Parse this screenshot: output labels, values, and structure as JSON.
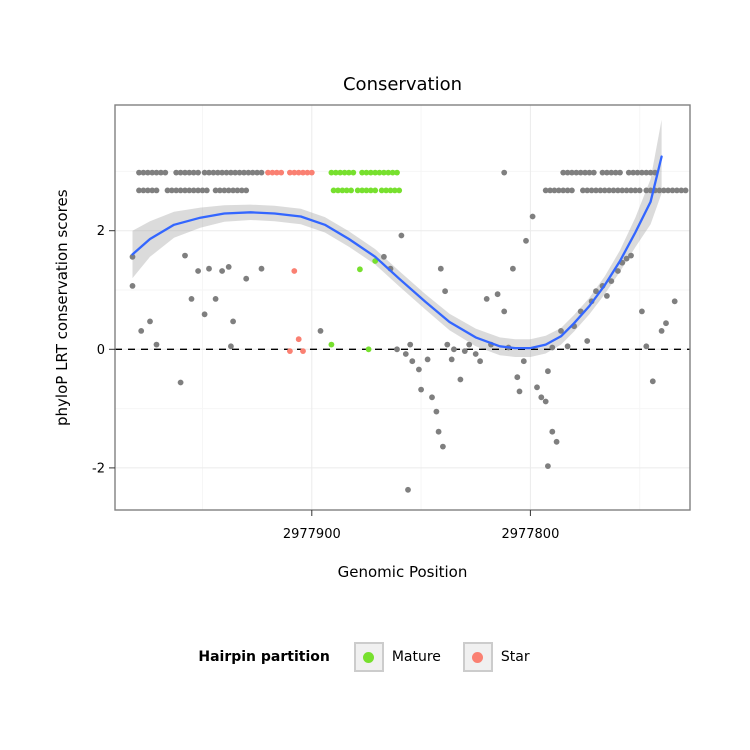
{
  "legend": {
    "title": "Hairpin partition",
    "items": [
      {
        "id": "mature",
        "label": "Mature",
        "color": "#77E02E"
      },
      {
        "id": "star",
        "label": "Star",
        "color": "#FA8072"
      }
    ]
  },
  "chart_data": {
    "type": "scatter",
    "title": "Conservation",
    "xlabel": "Genomic Position",
    "ylabel": "phyloP LRT conservation scores",
    "x_domain": [
      2977990,
      2977727
    ],
    "x_reversed": true,
    "x_ticks": [
      2977900,
      2977800
    ],
    "x_minor_ticks": [
      2977950,
      2977850,
      2977750
    ],
    "y_domain": [
      -2.71,
      4.12
    ],
    "y_ticks": [
      -2,
      0,
      2
    ],
    "y_minor_ticks": [
      -1,
      1,
      3
    ],
    "hline_y": 0,
    "run_step": 2,
    "colors": {
      "point": "#7F7F7F",
      "mature": "#77E02E",
      "star": "#FA8072",
      "smooth": "#3366FF",
      "ci": "#999999",
      "border": "#808080",
      "grid_major": "#EBEBEB",
      "grid_minor": "#F6F6F6",
      "tick": "#333333",
      "legend_key_fill": "#F0F0F0",
      "legend_key_border": "#CCCCCC"
    },
    "point_runs": [
      [
        2977979,
        2977966,
        2.98,
        "g"
      ],
      [
        2977962,
        2977951,
        2.98,
        "g"
      ],
      [
        2977949,
        2977923,
        2.98,
        "g"
      ],
      [
        2977920,
        2977913,
        2.98,
        "s"
      ],
      [
        2977910,
        2977900,
        2.98,
        "s"
      ],
      [
        2977891,
        2977880,
        2.98,
        "m"
      ],
      [
        2977877,
        2977861,
        2.98,
        "m"
      ],
      [
        2977812,
        2977812,
        2.98,
        "g"
      ],
      [
        2977785,
        2977770,
        2.98,
        "g"
      ],
      [
        2977767,
        2977758,
        2.98,
        "g"
      ],
      [
        2977755,
        2977742,
        2.98,
        "g"
      ],
      [
        2977979,
        2977970,
        2.68,
        "g"
      ],
      [
        2977966,
        2977948,
        2.68,
        "g"
      ],
      [
        2977944,
        2977930,
        2.68,
        "g"
      ],
      [
        2977890,
        2977882,
        2.68,
        "m"
      ],
      [
        2977879,
        2977871,
        2.68,
        "m"
      ],
      [
        2977868,
        2977860,
        2.68,
        "m"
      ],
      [
        2977793,
        2977780,
        2.68,
        "g"
      ],
      [
        2977776,
        2977750,
        2.68,
        "g"
      ],
      [
        2977747,
        2977729,
        2.68,
        "g"
      ]
    ],
    "points": [
      [
        2977982,
        1.56
      ],
      [
        2977982,
        1.07
      ],
      [
        2977978,
        0.31
      ],
      [
        2977974,
        0.47
      ],
      [
        2977971,
        0.08
      ],
      [
        2977960,
        -0.56
      ],
      [
        2977958,
        1.58
      ],
      [
        2977955,
        0.85
      ],
      [
        2977952,
        1.32
      ],
      [
        2977949,
        0.59
      ],
      [
        2977947,
        1.36
      ],
      [
        2977944,
        0.85
      ],
      [
        2977941,
        1.32
      ],
      [
        2977938,
        1.39
      ],
      [
        2977936,
        0.47
      ],
      [
        2977937,
        0.05
      ],
      [
        2977930,
        1.19
      ],
      [
        2977923,
        1.36
      ],
      [
        2977896,
        0.31
      ],
      [
        2977867,
        1.56
      ],
      [
        2977864,
        1.36
      ],
      [
        2977859,
        1.92
      ],
      [
        2977861,
        0.0
      ],
      [
        2977857,
        -0.08
      ],
      [
        2977855,
        0.08
      ],
      [
        2977854,
        -0.2
      ],
      [
        2977851,
        -0.34
      ],
      [
        2977850,
        -0.68
      ],
      [
        2977847,
        -0.17
      ],
      [
        2977845,
        -0.81
      ],
      [
        2977843,
        -1.05
      ],
      [
        2977841,
        1.36
      ],
      [
        2977839,
        0.98
      ],
      [
        2977838,
        0.08
      ],
      [
        2977836,
        -0.17
      ],
      [
        2977835,
        0.0
      ],
      [
        2977842,
        -1.39
      ],
      [
        2977840,
        -1.64
      ],
      [
        2977856,
        -2.37
      ],
      [
        2977832,
        -0.51
      ],
      [
        2977830,
        -0.03
      ],
      [
        2977828,
        0.08
      ],
      [
        2977825,
        -0.08
      ],
      [
        2977823,
        -0.2
      ],
      [
        2977820,
        0.85
      ],
      [
        2977818,
        0.08
      ],
      [
        2977815,
        0.93
      ],
      [
        2977812,
        0.64
      ],
      [
        2977810,
        0.03
      ],
      [
        2977808,
        1.36
      ],
      [
        2977806,
        -0.47
      ],
      [
        2977805,
        -0.71
      ],
      [
        2977803,
        -0.2
      ],
      [
        2977802,
        1.83
      ],
      [
        2977799,
        2.24
      ],
      [
        2977797,
        -0.64
      ],
      [
        2977795,
        -0.81
      ],
      [
        2977793,
        -0.88
      ],
      [
        2977792,
        -0.37
      ],
      [
        2977790,
        0.03
      ],
      [
        2977790,
        -1.39
      ],
      [
        2977788,
        -1.56
      ],
      [
        2977792,
        -1.97
      ],
      [
        2977786,
        0.31
      ],
      [
        2977783,
        0.05
      ],
      [
        2977780,
        0.39
      ],
      [
        2977777,
        0.64
      ],
      [
        2977774,
        0.14
      ],
      [
        2977772,
        0.81
      ],
      [
        2977770,
        0.98
      ],
      [
        2977767,
        1.07
      ],
      [
        2977765,
        0.9
      ],
      [
        2977763,
        1.15
      ],
      [
        2977760,
        1.32
      ],
      [
        2977758,
        1.46
      ],
      [
        2977756,
        1.53
      ],
      [
        2977754,
        1.58
      ],
      [
        2977749,
        0.64
      ],
      [
        2977747,
        0.05
      ],
      [
        2977744,
        -0.54
      ],
      [
        2977740,
        0.31
      ],
      [
        2977738,
        0.44
      ],
      [
        2977734,
        0.81
      ],
      [
        2977908,
        1.32,
        "s"
      ],
      [
        2977906,
        0.17,
        "s"
      ],
      [
        2977910,
        -0.03,
        "s"
      ],
      [
        2977904,
        -0.03,
        "s"
      ],
      [
        2977878,
        1.35,
        "m"
      ],
      [
        2977871,
        1.49,
        "m"
      ],
      [
        2977891,
        0.08,
        "m"
      ],
      [
        2977874,
        0.0,
        "m"
      ]
    ],
    "smooth": {
      "x": [
        2977982,
        2977974,
        2977963,
        2977951,
        2977940,
        2977928,
        2977917,
        2977905,
        2977894,
        2977883,
        2977871,
        2977860,
        2977848,
        2977837,
        2977825,
        2977814,
        2977807,
        2977800,
        2977793,
        2977786,
        2977780,
        2977773,
        2977766,
        2977759,
        2977752,
        2977745,
        2977740
      ],
      "y": [
        1.6,
        1.86,
        2.1,
        2.22,
        2.29,
        2.31,
        2.29,
        2.24,
        2.1,
        1.86,
        1.56,
        1.19,
        0.8,
        0.46,
        0.2,
        0.05,
        0.02,
        0.02,
        0.08,
        0.22,
        0.44,
        0.73,
        1.08,
        1.49,
        1.97,
        2.49,
        3.25
      ],
      "hw": [
        0.4,
        0.3,
        0.22,
        0.17,
        0.14,
        0.13,
        0.13,
        0.13,
        0.13,
        0.13,
        0.13,
        0.13,
        0.13,
        0.14,
        0.15,
        0.15,
        0.15,
        0.15,
        0.15,
        0.14,
        0.14,
        0.14,
        0.15,
        0.18,
        0.25,
        0.38,
        0.62
      ]
    }
  }
}
